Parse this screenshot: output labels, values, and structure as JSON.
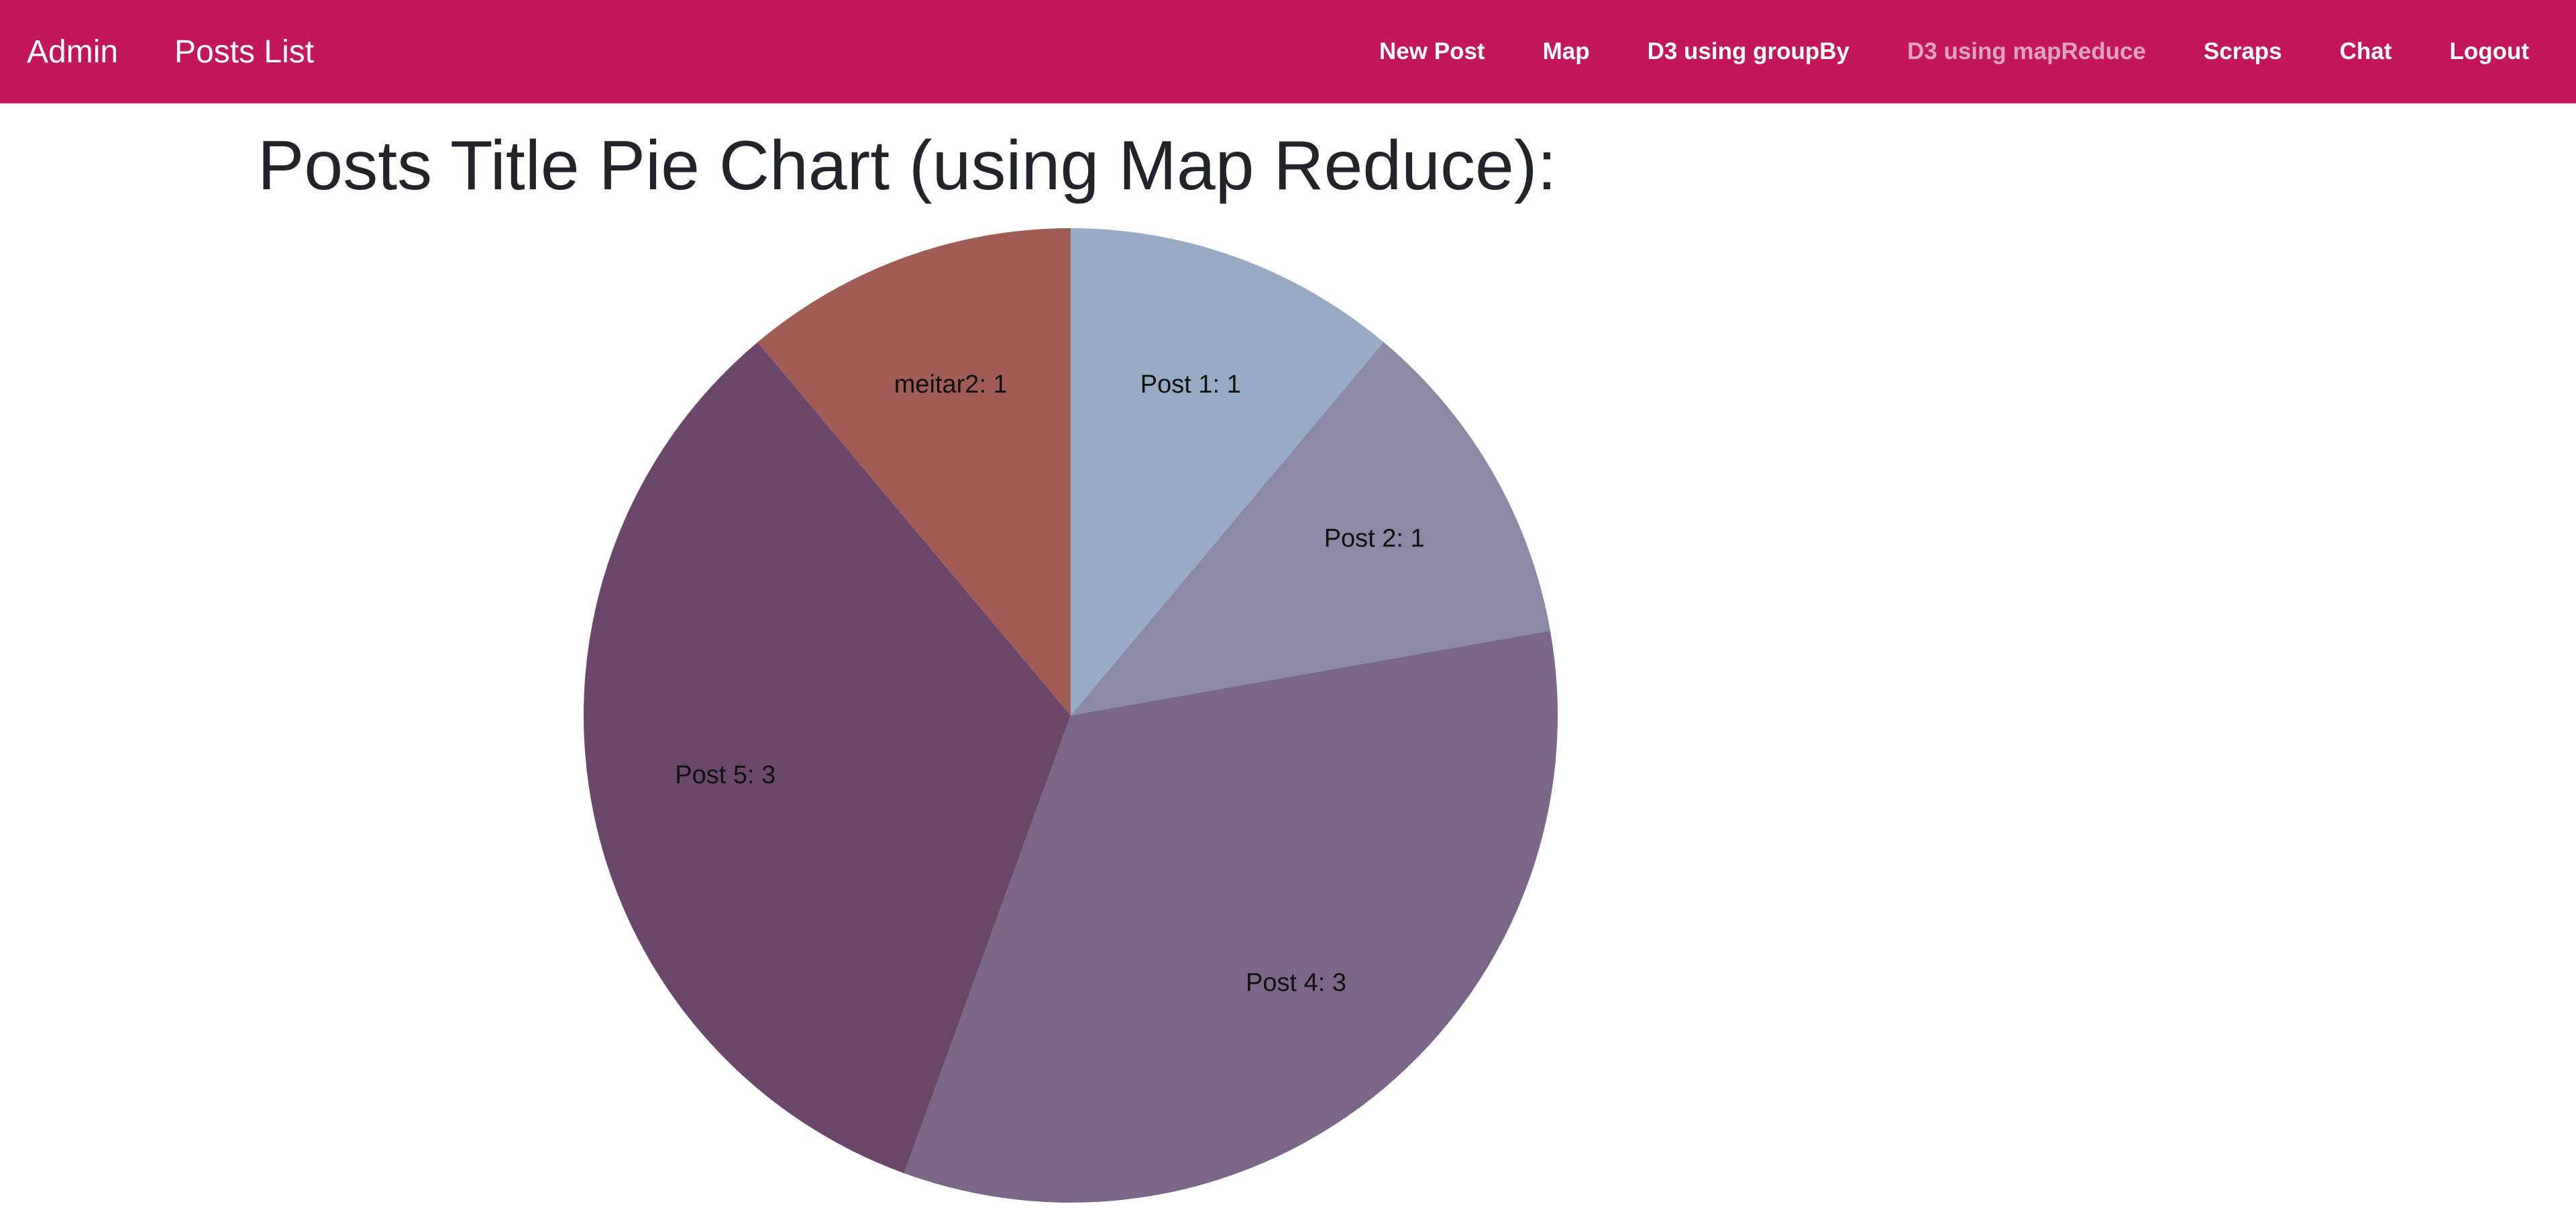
{
  "navbar": {
    "background": "#c2185b",
    "text_color": "#ffffff",
    "active_text_color": "#e0a3bd",
    "brand_admin": "Admin",
    "brand_posts": "Posts List",
    "items": [
      {
        "label": "New Post",
        "active": false
      },
      {
        "label": "Map",
        "active": false
      },
      {
        "label": "D3 using groupBy",
        "active": false
      },
      {
        "label": "D3 using mapReduce",
        "active": true
      },
      {
        "label": "Scraps",
        "active": false
      },
      {
        "label": "Chat",
        "active": false
      },
      {
        "label": "Logout",
        "active": false
      }
    ]
  },
  "page": {
    "title": "Posts Title Pie Chart (using Map Reduce):"
  },
  "chart_data": {
    "type": "pie",
    "title": "Posts Title Pie Chart (using Map Reduce):",
    "slices": [
      {
        "label": "Post 1",
        "value": 1,
        "display": "Post 1: 1",
        "color": "#98abc5"
      },
      {
        "label": "Post 2",
        "value": 1,
        "display": "Post 2: 1",
        "color": "#8a89a6"
      },
      {
        "label": "Post 4",
        "value": 3,
        "display": "Post 4: 3",
        "color": "#7b6888"
      },
      {
        "label": "Post 5",
        "value": 3,
        "display": "Post 5: 3",
        "color": "#6b486b"
      },
      {
        "label": "meitar2",
        "value": 1,
        "display": "meitar2: 1",
        "color": "#a05d56"
      }
    ]
  }
}
